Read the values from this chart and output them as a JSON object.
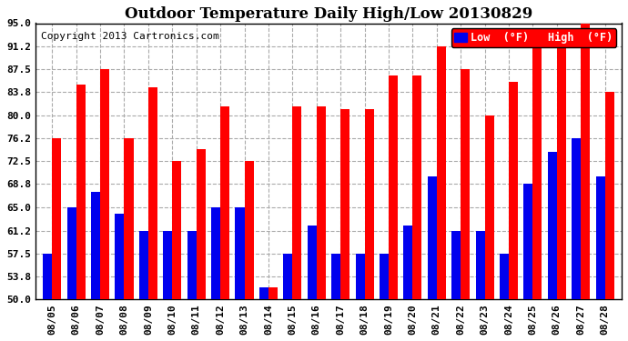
{
  "title": "Outdoor Temperature Daily High/Low 20130829",
  "copyright": "Copyright 2013 Cartronics.com",
  "legend_low": "Low  (°F)",
  "legend_high": "High  (°F)",
  "dates": [
    "08/05",
    "08/06",
    "08/07",
    "08/08",
    "08/09",
    "08/10",
    "08/11",
    "08/12",
    "08/13",
    "08/14",
    "08/15",
    "08/16",
    "08/17",
    "08/18",
    "08/19",
    "08/20",
    "08/21",
    "08/22",
    "08/23",
    "08/24",
    "08/25",
    "08/26",
    "08/27",
    "08/28"
  ],
  "highs": [
    76.2,
    85.0,
    87.5,
    76.2,
    84.5,
    72.5,
    74.5,
    81.5,
    72.5,
    52.0,
    81.5,
    81.5,
    81.0,
    81.0,
    86.5,
    86.5,
    91.2,
    87.5,
    80.0,
    85.5,
    91.2,
    91.2,
    95.0,
    83.8
  ],
  "lows": [
    57.5,
    65.0,
    67.5,
    64.0,
    61.2,
    61.2,
    61.2,
    65.0,
    65.0,
    52.0,
    57.5,
    62.0,
    57.5,
    57.5,
    57.5,
    62.0,
    70.0,
    61.2,
    61.2,
    57.5,
    68.8,
    74.0,
    76.2,
    70.0
  ],
  "ylim_min": 50.0,
  "ylim_max": 95.0,
  "yticks": [
    50.0,
    53.8,
    57.5,
    61.2,
    65.0,
    68.8,
    72.5,
    76.2,
    80.0,
    83.8,
    87.5,
    91.2,
    95.0
  ],
  "bar_width": 0.38,
  "high_color": "#FF0000",
  "low_color": "#0000EE",
  "bg_color": "#FFFFFF",
  "plot_bg_color": "#FFFFFF",
  "grid_color": "#AAAAAA",
  "title_fontsize": 12,
  "tick_fontsize": 8,
  "copyright_fontsize": 8
}
